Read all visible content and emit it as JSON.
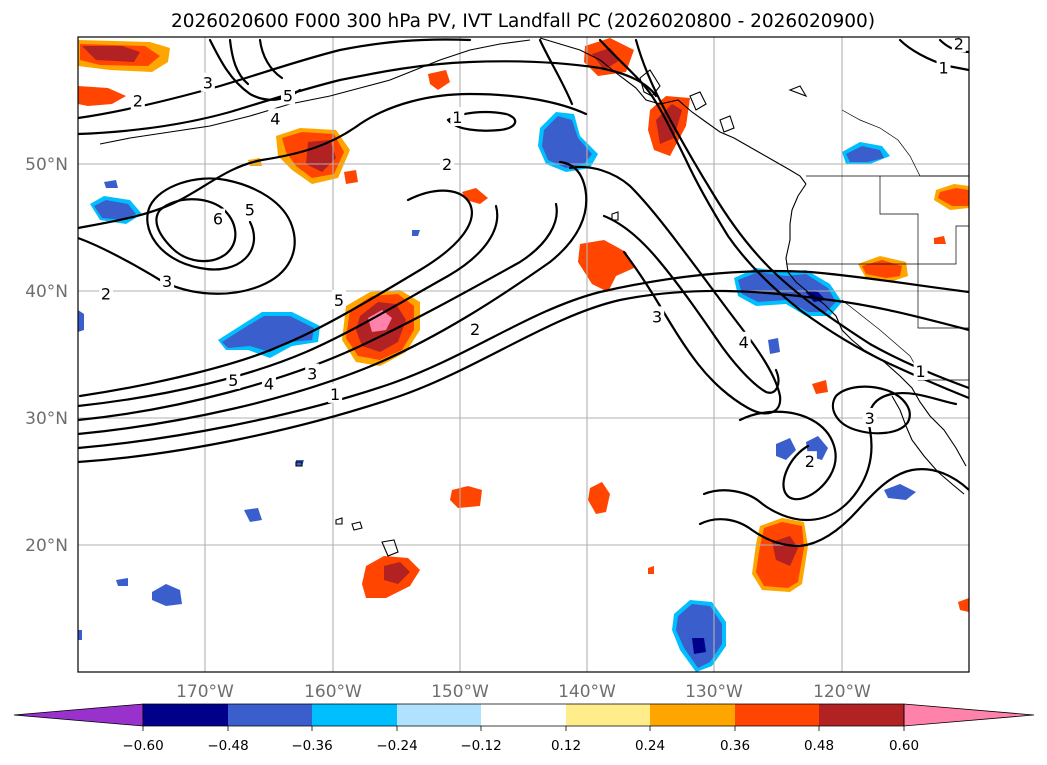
{
  "title": "2026020600 F000 300 hPa PV, IVT Landfall PC (2026020800 - 2026020900)",
  "map": {
    "extent": {
      "lon_min": -180,
      "lon_max": -110,
      "lat_min": 10,
      "lat_max": 60
    },
    "lat_ticks": [
      {
        "value": 20,
        "label": "20°N"
      },
      {
        "value": 30,
        "label": "30°N"
      },
      {
        "value": 40,
        "label": "40°N"
      },
      {
        "value": 50,
        "label": "50°N"
      }
    ],
    "lon_ticks": [
      {
        "value": -170,
        "label": "170°W"
      },
      {
        "value": -160,
        "label": "160°W"
      },
      {
        "value": -150,
        "label": "150°W"
      },
      {
        "value": -140,
        "label": "140°W"
      },
      {
        "value": -130,
        "label": "130°W"
      },
      {
        "value": -120,
        "label": "120°W"
      }
    ],
    "pv_contour_labels": [
      {
        "text": "1",
        "lon": -150.2,
        "lat": 53.7
      },
      {
        "text": "2",
        "lon": -151.0,
        "lat": 50.0
      },
      {
        "text": "2",
        "lon": -175.3,
        "lat": 55.0
      },
      {
        "text": "3",
        "lon": -169.8,
        "lat": 56.4
      },
      {
        "text": "4",
        "lon": -164.5,
        "lat": 53.6
      },
      {
        "text": "5",
        "lon": -163.5,
        "lat": 55.4
      },
      {
        "text": "5",
        "lon": -166.5,
        "lat": 46.4
      },
      {
        "text": "6",
        "lon": -169.0,
        "lat": 45.7
      },
      {
        "text": "3",
        "lon": -173.0,
        "lat": 40.8
      },
      {
        "text": "2",
        "lon": -177.8,
        "lat": 39.8
      },
      {
        "text": "5",
        "lon": -159.5,
        "lat": 39.3
      },
      {
        "text": "2",
        "lon": -148.8,
        "lat": 37.0
      },
      {
        "text": "3",
        "lon": -161.6,
        "lat": 33.5
      },
      {
        "text": "4",
        "lon": -165.0,
        "lat": 32.7
      },
      {
        "text": "5",
        "lon": -167.8,
        "lat": 33.0
      },
      {
        "text": "1",
        "lon": -159.8,
        "lat": 31.9
      },
      {
        "text": "3",
        "lon": -134.5,
        "lat": 38.0
      },
      {
        "text": "4",
        "lon": -127.7,
        "lat": 36.0
      },
      {
        "text": "1",
        "lon": -113.8,
        "lat": 33.7
      },
      {
        "text": "3",
        "lon": -117.8,
        "lat": 30.0
      },
      {
        "text": "2",
        "lon": -122.5,
        "lat": 26.6
      },
      {
        "text": "1",
        "lon": -112.0,
        "lat": 57.6
      },
      {
        "text": "2",
        "lon": -110.8,
        "lat": 59.5
      }
    ]
  },
  "colorbar": {
    "colors": [
      "#9932cc",
      "#00008b",
      "#3a5fcd",
      "#00bfff",
      "#b0e2ff",
      "#ffffff",
      "#ffec8b",
      "#ffa500",
      "#ff4500",
      "#b22222",
      "#ff82ab"
    ],
    "ticks": [
      "−0.60",
      "−0.48",
      "−0.36",
      "−0.24",
      "−0.12",
      "0.12",
      "0.24",
      "0.36",
      "0.48",
      "0.60"
    ]
  }
}
